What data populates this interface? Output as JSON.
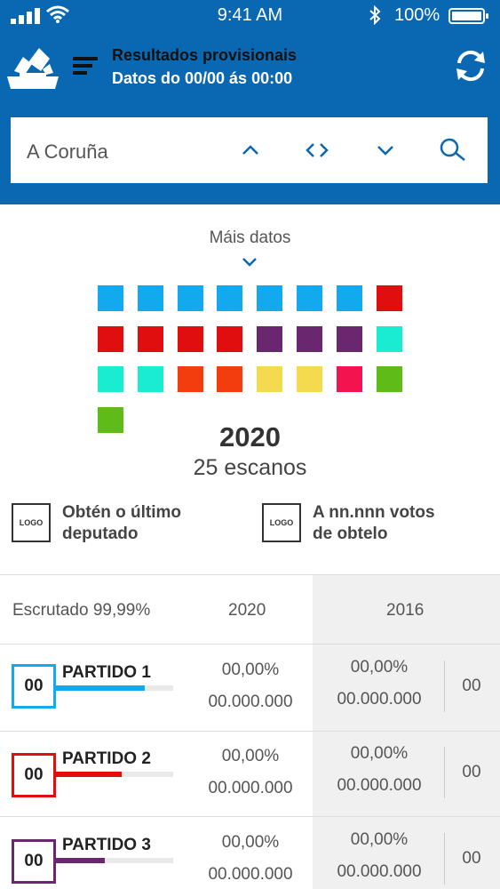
{
  "status_bar": {
    "time": "9:41 AM",
    "battery": "100%"
  },
  "header": {
    "title": "Resultados provisionais",
    "subtitle": "Datos do 00/00 ás 00:00"
  },
  "search": {
    "value": "A Coruña"
  },
  "seats": {
    "more_data_label": "Máis datos",
    "year": "2020",
    "total_label": "25 escanos",
    "colors": [
      "#13a9ef",
      "#13a9ef",
      "#13a9ef",
      "#13a9ef",
      "#13a9ef",
      "#13a9ef",
      "#13a9ef",
      "#e00e0e",
      "#e00e0e",
      "#e00e0e",
      "#e00e0e",
      "#e00e0e",
      "#6a2770",
      "#6a2770",
      "#6a2770",
      "#19ecd0",
      "#19ecd0",
      "#19ecd0",
      "#f33d0f",
      "#f33d0f",
      "#f3da4f",
      "#f3da4f",
      "#f2134f",
      "#5fbb17",
      "#5fbb17"
    ]
  },
  "info": {
    "left_logo": "LOGO",
    "left_text_1": "Obtén o último",
    "left_text_2": "deputado",
    "right_logo": "LOGO",
    "right_text_1": "A nn.nnn votos",
    "right_text_2": "de obtelo"
  },
  "table": {
    "scrutinized": "Escrutado 99,99%",
    "col_2020": "2020",
    "col_2016": "2016",
    "rows": [
      {
        "seats": "00",
        "name": "PARTIDO 1",
        "color": "#13a9ef",
        "bar": 0.76,
        "pct_2020": "00,00%",
        "votes_2020": "00.000.000",
        "pct_2016": "00,00%",
        "votes_2016": "00.000.000",
        "seats_2016": "00"
      },
      {
        "seats": "00",
        "name": "PARTIDO 2",
        "color": "#e00e0e",
        "bar": 0.56,
        "pct_2020": "00,00%",
        "votes_2020": "00.000.000",
        "pct_2016": "00,00%",
        "votes_2016": "00.000.000",
        "seats_2016": "00"
      },
      {
        "seats": "00",
        "name": "PARTIDO 3",
        "color": "#6a2770",
        "bar": 0.42,
        "pct_2020": "00,00%",
        "votes_2020": "00.000.000",
        "pct_2016": "00,00%",
        "votes_2016": "00.000.000",
        "seats_2016": "00"
      }
    ]
  }
}
